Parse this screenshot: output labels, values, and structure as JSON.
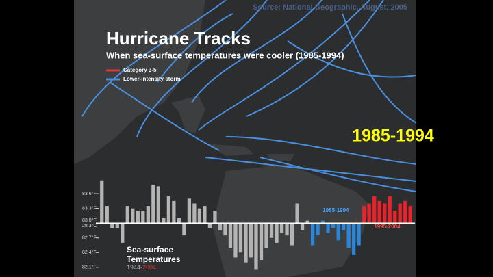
{
  "source": "Source: National Geographic, August, 2005",
  "title": "Hurricane Tracks",
  "subtitle": "When sea-surface temperatures were cooler (1985-1994)",
  "legend": [
    {
      "label": "Category 3-5",
      "color": "#e8333a"
    },
    {
      "label": "Lower-intensity storm",
      "color": "#4a8fe0"
    }
  ],
  "highlight": "1985-1994",
  "chart_data": {
    "type": "bar",
    "title": "Sea-surface Temperatures",
    "range_start": "1944-",
    "range_end": "2004",
    "celsius_label": "28.3°C",
    "baseline": 83.0,
    "ylim": [
      82.0,
      83.95
    ],
    "yticks": [
      {
        "value": 83.6,
        "label": "83.6°F"
      },
      {
        "value": 83.3,
        "label": "83.3°F"
      },
      {
        "value": 83.0,
        "label": "83.0°F"
      },
      {
        "value": 82.7,
        "label": "82.7°F"
      },
      {
        "value": 82.4,
        "label": "82.4°F"
      },
      {
        "value": 82.1,
        "label": "82.1°F"
      }
    ],
    "series": [
      {
        "color": "#b4b4b4",
        "values": [
          83.87,
          83.35,
          82.9,
          82.9,
          82.6,
          83.35,
          83.3,
          83.25,
          83.25,
          83.35,
          83.78,
          83.75,
          83.1,
          83.55,
          83.45,
          83.1,
          82.75,
          83.5,
          83.4,
          83.3,
          83.35,
          82.9,
          83.25,
          82.85,
          82.75,
          82.5,
          82.3,
          82.4,
          82.2,
          82.3,
          82.05,
          82.25,
          82.5,
          82.7,
          82.6,
          82.8,
          82.75,
          82.55,
          83.4,
          82.85,
          83.05
        ]
      },
      {
        "name": "1985-1994",
        "color": "#2a86d8",
        "values": [
          82.55,
          82.75,
          83.05,
          82.8,
          82.9,
          82.65,
          82.85,
          82.5,
          82.35,
          82.55
        ]
      },
      {
        "name": "1995-2004",
        "color": "#e8232a",
        "values": [
          83.35,
          83.4,
          83.55,
          83.45,
          83.4,
          83.55,
          83.25,
          83.4,
          83.45,
          83.35
        ]
      }
    ]
  }
}
